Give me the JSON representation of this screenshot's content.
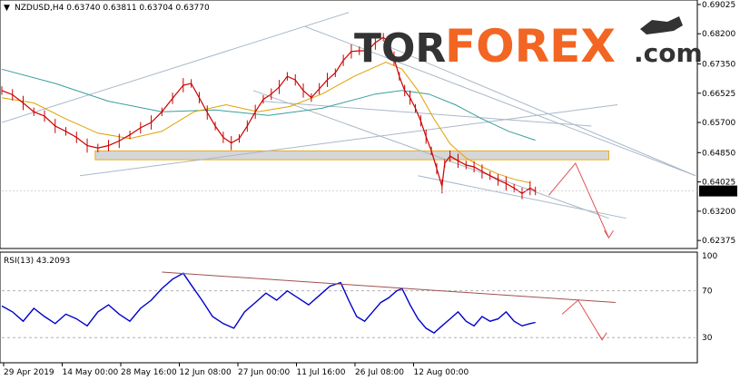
{
  "header": {
    "symbol_line": "NZDUSD,H4  0.63740 0.63811 0.63704 0.63770",
    "rsi_label": "RSI(13) 43.2093"
  },
  "brand": {
    "tor": "TOR",
    "forex": "FOREX",
    "com": ".com",
    "tor_color": "#333333",
    "forex_color": "#f26522",
    "com_color": "#333333"
  },
  "chart_data": {
    "type": "line",
    "instrument": "NZDUSD",
    "timeframe": "H4",
    "ohlc_last": {
      "open": 0.6374,
      "high": 0.63811,
      "low": 0.63704,
      "close": 0.6377
    },
    "price_ticks": [
      0.69025,
      0.682,
      0.6735,
      0.66525,
      0.657,
      0.6485,
      0.64025,
      0.632,
      0.62375
    ],
    "price_ticks_text": [
      "0.69025",
      "0.68200",
      "0.67350",
      "0.66525",
      "0.65700",
      "0.64850",
      "0.64025",
      "0.63200",
      "0.62375"
    ],
    "current_price_text": "0.63770",
    "ylim": [
      0.622,
      0.691
    ],
    "x_tick_labels": [
      "29 Apr 2019",
      "14 May 00:00",
      "28 May 16:00",
      "12 Jun 08:00",
      "27 Jun 00:00",
      "11 Jul 16:00",
      "26 Jul 08:00",
      "12 Aug 00:00"
    ],
    "price_series": {
      "color": "#cc0000",
      "points": [
        [
          0,
          0.666
        ],
        [
          8,
          0.6648
        ],
        [
          16,
          0.6625
        ],
        [
          24,
          0.66
        ],
        [
          32,
          0.6588
        ],
        [
          40,
          0.656
        ],
        [
          48,
          0.6545
        ],
        [
          56,
          0.6528
        ],
        [
          64,
          0.6505
        ],
        [
          72,
          0.6498
        ],
        [
          80,
          0.6505
        ],
        [
          88,
          0.6518
        ],
        [
          96,
          0.6535
        ],
        [
          104,
          0.6555
        ],
        [
          112,
          0.657
        ],
        [
          120,
          0.66
        ],
        [
          128,
          0.6638
        ],
        [
          136,
          0.6675
        ],
        [
          142,
          0.668
        ],
        [
          148,
          0.664
        ],
        [
          154,
          0.6598
        ],
        [
          160,
          0.656
        ],
        [
          166,
          0.6528
        ],
        [
          172,
          0.6512
        ],
        [
          178,
          0.6525
        ],
        [
          184,
          0.656
        ],
        [
          190,
          0.66
        ],
        [
          196,
          0.6635
        ],
        [
          202,
          0.665
        ],
        [
          208,
          0.667
        ],
        [
          214,
          0.67
        ],
        [
          220,
          0.669
        ],
        [
          226,
          0.666
        ],
        [
          232,
          0.664
        ],
        [
          238,
          0.6665
        ],
        [
          244,
          0.669
        ],
        [
          250,
          0.671
        ],
        [
          256,
          0.6745
        ],
        [
          262,
          0.677
        ],
        [
          268,
          0.6772
        ],
        [
          274,
          0.6772
        ],
        [
          280,
          0.6795
        ],
        [
          286,
          0.681
        ],
        [
          290,
          0.6795
        ],
        [
          294,
          0.675
        ],
        [
          298,
          0.67
        ],
        [
          302,
          0.666
        ],
        [
          306,
          0.664
        ],
        [
          310,
          0.661
        ],
        [
          314,
          0.6575
        ],
        [
          318,
          0.653
        ],
        [
          322,
          0.649
        ],
        [
          326,
          0.644
        ],
        [
          330,
          0.639
        ],
        [
          332,
          0.6455
        ],
        [
          336,
          0.6475
        ],
        [
          342,
          0.6462
        ],
        [
          348,
          0.645
        ],
        [
          354,
          0.6445
        ],
        [
          360,
          0.6432
        ],
        [
          366,
          0.642
        ],
        [
          372,
          0.6408
        ],
        [
          378,
          0.6398
        ],
        [
          384,
          0.6385
        ],
        [
          390,
          0.637
        ],
        [
          396,
          0.6385
        ],
        [
          400,
          0.6377
        ]
      ]
    },
    "ma_fast": {
      "color": "#e0a000",
      "points": [
        [
          0,
          0.664
        ],
        [
          24,
          0.6625
        ],
        [
          48,
          0.658
        ],
        [
          72,
          0.654
        ],
        [
          96,
          0.6525
        ],
        [
          120,
          0.6545
        ],
        [
          144,
          0.66
        ],
        [
          168,
          0.662
        ],
        [
          192,
          0.66
        ],
        [
          216,
          0.6615
        ],
        [
          240,
          0.665
        ],
        [
          264,
          0.67
        ],
        [
          288,
          0.674
        ],
        [
          300,
          0.672
        ],
        [
          312,
          0.666
        ],
        [
          324,
          0.658
        ],
        [
          336,
          0.651
        ],
        [
          348,
          0.647
        ],
        [
          360,
          0.6445
        ],
        [
          372,
          0.6425
        ],
        [
          384,
          0.641
        ],
        [
          396,
          0.64
        ]
      ]
    },
    "ma_slow": {
      "color": "#3a9d9d",
      "points": [
        [
          0,
          0.672
        ],
        [
          40,
          0.668
        ],
        [
          80,
          0.663
        ],
        [
          120,
          0.66
        ],
        [
          160,
          0.6605
        ],
        [
          200,
          0.659
        ],
        [
          240,
          0.661
        ],
        [
          280,
          0.665
        ],
        [
          300,
          0.666
        ],
        [
          320,
          0.665
        ],
        [
          340,
          0.662
        ],
        [
          360,
          0.658
        ],
        [
          380,
          0.6545
        ],
        [
          400,
          0.652
        ]
      ]
    },
    "support_zone": {
      "from_price": 0.649,
      "to_price": 0.6465,
      "color": "#d0d0d0"
    },
    "rsi": {
      "period": 13,
      "value": 43.2093,
      "ylim": [
        10,
        100
      ],
      "ticks": [
        100,
        70,
        30
      ],
      "ticks_text": [
        "100",
        "70",
        "30"
      ],
      "color": "#0000cc",
      "points": [
        [
          0,
          57
        ],
        [
          8,
          52
        ],
        [
          16,
          44
        ],
        [
          24,
          55
        ],
        [
          32,
          48
        ],
        [
          40,
          42
        ],
        [
          48,
          50
        ],
        [
          56,
          46
        ],
        [
          64,
          40
        ],
        [
          72,
          52
        ],
        [
          80,
          58
        ],
        [
          88,
          50
        ],
        [
          96,
          44
        ],
        [
          104,
          55
        ],
        [
          112,
          62
        ],
        [
          120,
          72
        ],
        [
          128,
          80
        ],
        [
          136,
          85
        ],
        [
          142,
          75
        ],
        [
          150,
          62
        ],
        [
          158,
          48
        ],
        [
          166,
          42
        ],
        [
          174,
          38
        ],
        [
          182,
          52
        ],
        [
          190,
          60
        ],
        [
          198,
          68
        ],
        [
          206,
          62
        ],
        [
          214,
          70
        ],
        [
          222,
          64
        ],
        [
          230,
          58
        ],
        [
          238,
          66
        ],
        [
          246,
          74
        ],
        [
          254,
          77
        ],
        [
          260,
          62
        ],
        [
          266,
          48
        ],
        [
          272,
          44
        ],
        [
          278,
          52
        ],
        [
          284,
          60
        ],
        [
          290,
          64
        ],
        [
          296,
          70
        ],
        [
          300,
          72
        ],
        [
          306,
          58
        ],
        [
          312,
          46
        ],
        [
          318,
          38
        ],
        [
          324,
          34
        ],
        [
          330,
          40
        ],
        [
          336,
          46
        ],
        [
          342,
          52
        ],
        [
          348,
          44
        ],
        [
          354,
          40
        ],
        [
          360,
          48
        ],
        [
          366,
          44
        ],
        [
          372,
          46
        ],
        [
          378,
          52
        ],
        [
          384,
          44
        ],
        [
          390,
          40
        ],
        [
          396,
          42
        ],
        [
          400,
          43
        ]
      ],
      "trendline_from": [
        120,
        86
      ],
      "trendline_to": [
        460,
        60
      ]
    },
    "forecast": {
      "color": "#e05050",
      "price_path": [
        [
          410,
          0.6365
        ],
        [
          430,
          0.6455
        ],
        [
          455,
          0.6245
        ]
      ],
      "rsi_path": [
        [
          420,
          50
        ],
        [
          432,
          62
        ],
        [
          450,
          28
        ]
      ]
    }
  }
}
